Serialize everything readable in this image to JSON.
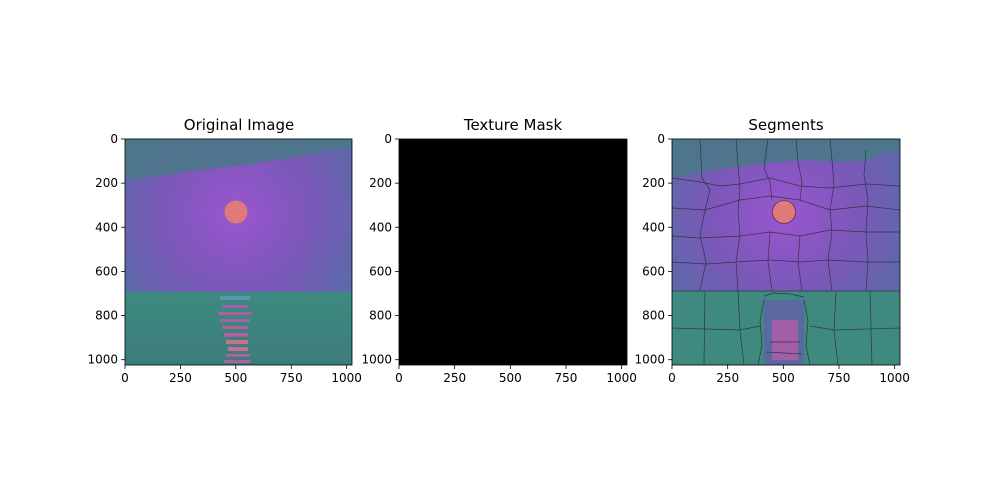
{
  "chart_data": [
    {
      "type": "image",
      "title": "Original Image",
      "x_ticks": [
        0,
        250,
        500,
        750,
        1000
      ],
      "y_ticks": [
        0,
        200,
        400,
        600,
        800,
        1000
      ],
      "xlim": [
        0,
        1024
      ],
      "ylim": [
        1024,
        0
      ],
      "content": {
        "sky_color": "#7a55b8",
        "sky_center_color": "#9a55d0",
        "top_band_color": "#4a7a8a",
        "sea_color": "#3e8a7e",
        "sun_color": "#e07a78",
        "sun_center": [
          500,
          330
        ],
        "sun_radius": 52,
        "horizon_y": 690,
        "reflection_color": "#d45aa8"
      }
    },
    {
      "type": "image",
      "title": "Texture Mask",
      "x_ticks": [
        0,
        250,
        500,
        750,
        1000
      ],
      "y_ticks": [
        0,
        200,
        400,
        600,
        800,
        1000
      ],
      "xlim": [
        0,
        1024
      ],
      "ylim": [
        1024,
        0
      ],
      "content": {
        "fill_color": "#000000"
      }
    },
    {
      "type": "image",
      "title": "Segments",
      "x_ticks": [
        0,
        250,
        500,
        750,
        1000
      ],
      "y_ticks": [
        0,
        200,
        400,
        600,
        800,
        1000
      ],
      "xlim": [
        0,
        1024
      ],
      "ylim": [
        1024,
        0
      ],
      "content": {
        "sky_color": "#7a55b8",
        "sea_color": "#3e8a7e",
        "sun_color": "#e07a78",
        "sun_center": [
          500,
          330
        ],
        "sun_radius": 52,
        "horizon_y": 690,
        "boundary_color": "#2a2a3a"
      }
    }
  ]
}
